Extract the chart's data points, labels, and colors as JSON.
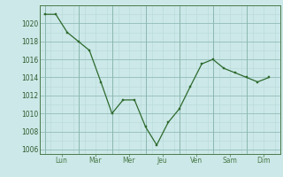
{
  "x_values": [
    0,
    0.33,
    0.67,
    1,
    1.33,
    1.67,
    2,
    2.33,
    2.67,
    3,
    3.33,
    3.67,
    4,
    4.33,
    4.67,
    5,
    5.33,
    5.67,
    6,
    6.33,
    6.67
  ],
  "y_values": [
    1021,
    1021,
    1019,
    1018,
    1017,
    1013.5,
    1010,
    1011.5,
    1011.5,
    1008.5,
    1006.5,
    1009,
    1010.5,
    1013,
    1015.5,
    1016,
    1015,
    1014.5,
    1014,
    1013.5,
    1014
  ],
  "day_x": [
    0,
    1,
    2,
    3,
    4,
    5,
    6
  ],
  "day_labels": [
    "Lun",
    "Mar",
    "Mer",
    "Jeu",
    "Ven",
    "Sam",
    "Dim"
  ],
  "ylim": [
    1005.5,
    1022
  ],
  "yticks": [
    1006,
    1008,
    1010,
    1012,
    1014,
    1016,
    1018,
    1020
  ],
  "xlim": [
    -0.15,
    7.0
  ],
  "line_color": "#2d6a2d",
  "bg_color": "#cce8e8",
  "grid_minor_color": "#b8d8d8",
  "grid_major_color": "#8ab8b0",
  "tick_label_color": "#2d5a2d",
  "spine_color": "#4a7a4a"
}
